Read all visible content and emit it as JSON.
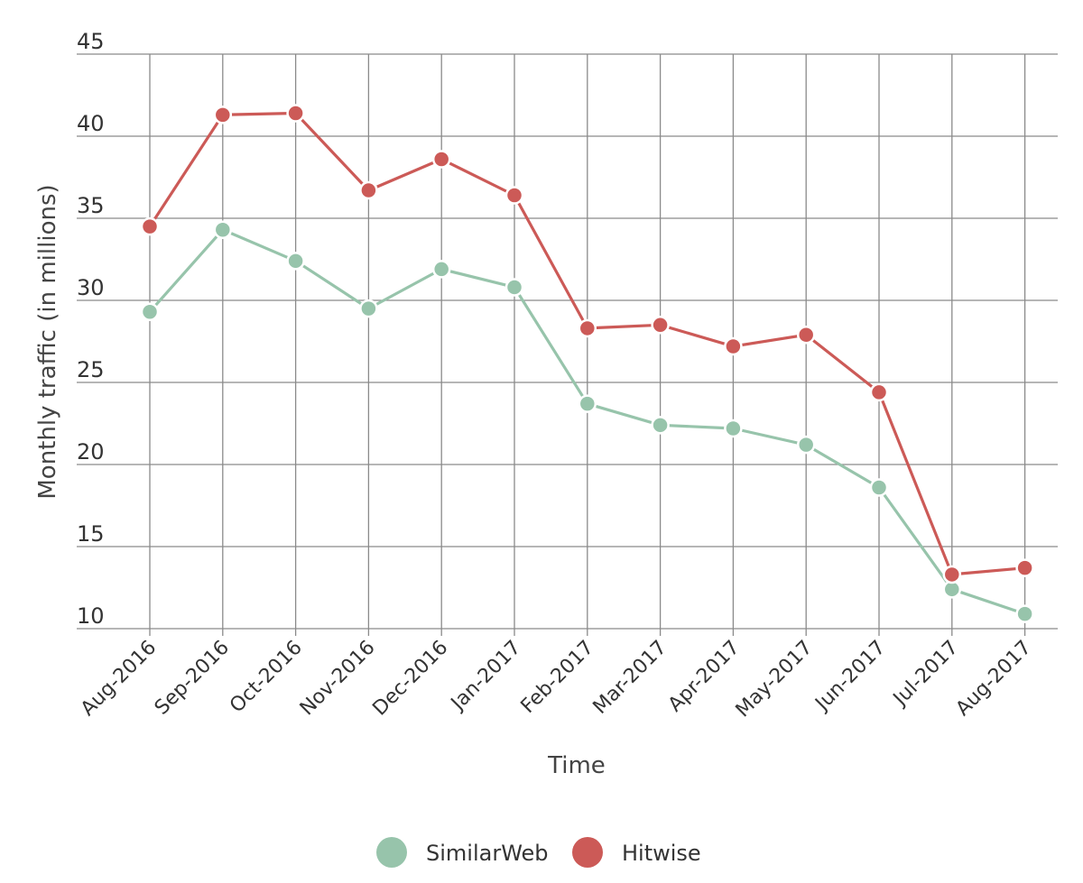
{
  "chart_data": {
    "type": "line",
    "title": "",
    "xlabel": "Time",
    "ylabel": "Monthly traffic (in millions)",
    "ylim": [
      10,
      45
    ],
    "yticks": [
      10,
      15,
      20,
      25,
      30,
      35,
      40,
      45
    ],
    "grid": true,
    "legend_position": "bottom-center",
    "categories": [
      "Aug-2016",
      "Sep-2016",
      "Oct-2016",
      "Nov-2016",
      "Dec-2016",
      "Jan-2017",
      "Feb-2017",
      "Mar-2017",
      "Apr-2017",
      "May-2017",
      "Jun-2017",
      "Jul-2017",
      "Aug-2017"
    ],
    "series": [
      {
        "name": "SimilarWeb",
        "color": "#97c4ab",
        "values": [
          29.3,
          34.3,
          32.4,
          29.5,
          31.9,
          30.8,
          23.7,
          22.4,
          22.2,
          21.2,
          18.6,
          12.4,
          10.9
        ]
      },
      {
        "name": "Hitwise",
        "color": "#cc5a57",
        "values": [
          34.5,
          41.3,
          41.4,
          36.7,
          38.6,
          36.4,
          28.3,
          28.5,
          27.2,
          27.9,
          24.4,
          13.3,
          13.7
        ]
      }
    ]
  }
}
